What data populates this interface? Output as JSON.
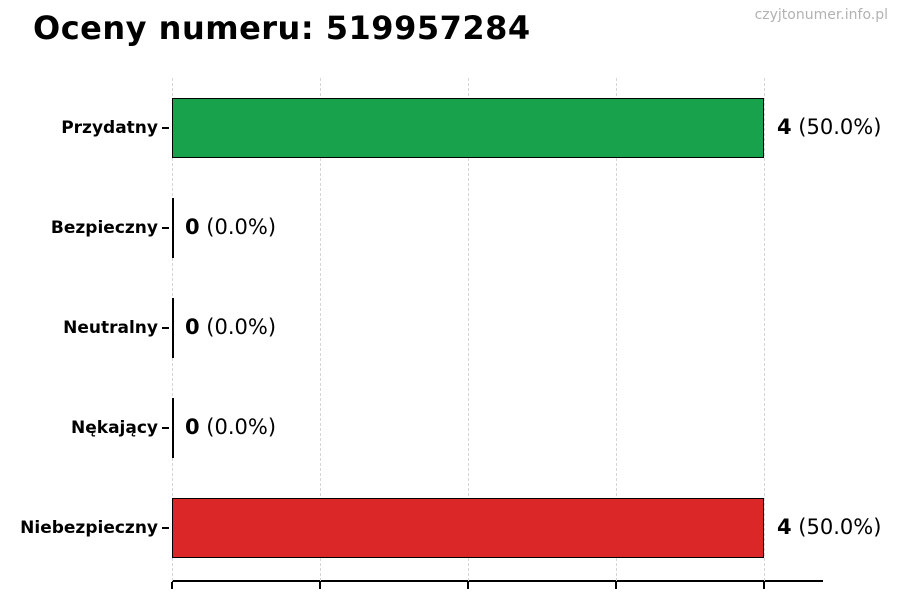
{
  "header": {
    "title": "Oceny numeru: 519957284",
    "watermark": "czyjtonumer.info.pl"
  },
  "chart_data": {
    "type": "bar",
    "orientation": "horizontal",
    "title": "Oceny numeru: 519957284",
    "categories": [
      "Przydatny",
      "Bezpieczny",
      "Neutralny",
      "Nękający",
      "Niebezpieczny"
    ],
    "values": [
      4,
      0,
      0,
      0,
      4
    ],
    "counts": [
      "4",
      "0",
      "0",
      "0",
      "4"
    ],
    "percent_labels": [
      "(50.0%)",
      "(0.0%)",
      "(0.0%)",
      "(0.0%)",
      "(50.0%)"
    ],
    "bar_colors": [
      "#18a24b",
      null,
      null,
      null,
      "#db2728"
    ],
    "bar_edge_color": "#000000",
    "xlabel": "",
    "ylabel": "",
    "xlim": [
      0,
      4.4
    ],
    "x_gridline_values": [
      0,
      1,
      2,
      3,
      4
    ],
    "x_tick_labels_visible": false,
    "grid": "vertical dashed",
    "legend": "none",
    "colors": {
      "positive_bar": "#18a24b",
      "negative_bar": "#db2728",
      "gridline": "#d5d5d5",
      "axis": "#000000",
      "watermark_text": "#b2b2b2"
    }
  }
}
